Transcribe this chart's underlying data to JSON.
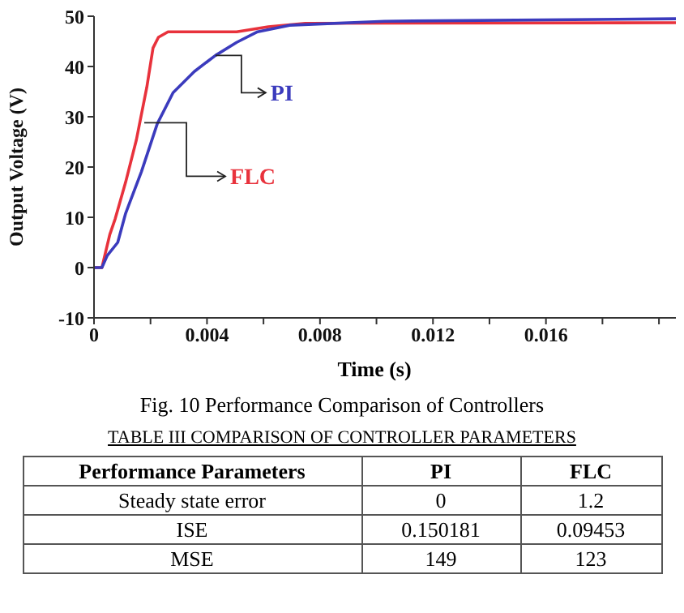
{
  "chart_data": [
    {
      "type": "line",
      "xlabel": "Time (s)",
      "ylabel": "Output Voltage (V)",
      "xlim": [
        0,
        0.0206
      ],
      "ylim": [
        -10,
        50
      ],
      "xticks": [
        0,
        {
          "value": 0.002,
          "label": null
        },
        0.004,
        {
          "value": 0.006,
          "label": null
        },
        0.008,
        {
          "value": 0.01,
          "label": null
        },
        0.012,
        {
          "value": 0.014,
          "label": null
        },
        0.016,
        {
          "value": 0.018,
          "label": null
        },
        {
          "value": 0.02,
          "label": null
        }
      ],
      "yticks": [
        -10,
        0,
        10,
        20,
        30,
        40,
        50
      ],
      "series": [
        {
          "color": "#e8323c",
          "x": [
            0,
            0.00028,
            0.00056,
            0.00075,
            0.00112,
            0.0015,
            0.00187,
            0.00209,
            0.00228,
            0.00262,
            0.00505,
            0.00617,
            0.00748,
            0.0206
          ],
          "values": [
            0,
            0,
            6.6,
            9.7,
            17,
            25.4,
            35.9,
            43.7,
            45.8,
            46.9,
            46.9,
            47.9,
            48.6,
            48.7
          ]
        },
        {
          "color": "#3b3bbd",
          "x": [
            0,
            0.00028,
            0.00047,
            0.00084,
            0.00112,
            0.00168,
            0.00224,
            0.0028,
            0.00355,
            0.0043,
            0.00505,
            0.00579,
            0.00692,
            0.01028,
            0.0206
          ],
          "values": [
            0,
            0,
            2.4,
            5,
            10.8,
            19.1,
            28.6,
            34.8,
            39,
            42.2,
            44.8,
            46.9,
            48.2,
            49,
            49.5
          ]
        }
      ],
      "annotations": [
        {
          "text": "PI",
          "x": 0.0043,
          "y": 42.2
        },
        {
          "text": "FLC",
          "x": 0.00178,
          "y": 28.8
        },
        "Fig. 10 Performance Comparison of Controllers"
      ],
      "grid": false,
      "legend": false,
      "marker": "none",
      "line_style": "solid"
    },
    {
      "type": "other",
      "title": "TABLE III COMPARISON OF CONTROLLER PARAMETERS",
      "xlabel": "Performance Parameters",
      "categories": [
        "Steady state error",
        "ISE",
        "MSE"
      ],
      "series": [
        {
          "name": "PI",
          "values": [
            0,
            0.150181,
            149
          ]
        },
        {
          "name": "FLC",
          "values": [
            1.2,
            0.09453,
            123
          ]
        }
      ],
      "data_labels": true
    }
  ]
}
